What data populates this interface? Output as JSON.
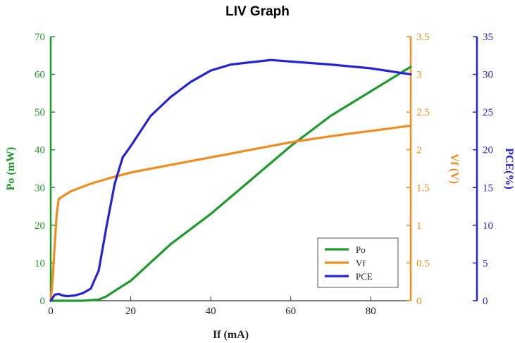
{
  "chart_data": {
    "type": "line",
    "title": "LIV Graph",
    "xlabel": "If (mA)",
    "xlim": [
      0,
      90
    ],
    "xticks": [
      0,
      20,
      40,
      60,
      80
    ],
    "axes": {
      "left": {
        "label": "Po (mW)",
        "lim": [
          0,
          70
        ],
        "ticks": [
          "0",
          "10",
          "20",
          "30",
          "40",
          "50",
          "60",
          "70"
        ],
        "color": "#1e9a2c"
      },
      "right1": {
        "label": "Vf (V)",
        "lim": [
          0,
          3.5
        ],
        "ticks": [
          "0",
          "0.5",
          "1",
          "1.5",
          "2",
          "2.5",
          "3",
          "3.5"
        ],
        "color": "#f08c1e"
      },
      "right2": {
        "label": "PCE(%)",
        "lim": [
          0,
          35
        ],
        "ticks": [
          "0",
          "5",
          "10",
          "15",
          "20",
          "25",
          "30",
          "35"
        ],
        "color": "#2424d4"
      }
    },
    "legend_position": "bottom-right",
    "series": [
      {
        "name": "Po",
        "axis": "left",
        "color": "#1e9a2c",
        "x": [
          0,
          8,
          12,
          14,
          16,
          20,
          30,
          40,
          50,
          60,
          70,
          80,
          90
        ],
        "y": [
          0,
          0,
          0.3,
          1.2,
          2.6,
          5.3,
          15,
          23,
          32,
          41,
          49,
          55.5,
          62
        ]
      },
      {
        "name": "Vf",
        "axis": "right1",
        "color": "#f08c1e",
        "x": [
          0,
          0.5,
          1,
          1.5,
          2,
          5,
          10,
          15,
          20,
          30,
          40,
          50,
          60,
          70,
          80,
          90
        ],
        "y": [
          0,
          0.3,
          0.75,
          1.15,
          1.35,
          1.45,
          1.55,
          1.63,
          1.7,
          1.8,
          1.9,
          2.0,
          2.1,
          2.18,
          2.25,
          2.32
        ]
      },
      {
        "name": "PCE",
        "axis": "right2",
        "color": "#2424d4",
        "x": [
          0,
          1,
          2,
          3,
          4,
          6,
          8,
          10,
          12,
          14,
          16,
          18,
          20,
          25,
          30,
          35,
          40,
          45,
          50,
          55,
          60,
          70,
          80,
          90
        ],
        "y": [
          0,
          0.8,
          0.9,
          0.7,
          0.6,
          0.7,
          1.0,
          1.6,
          4,
          10,
          15.5,
          19,
          20.5,
          24.5,
          27,
          29,
          30.5,
          31.3,
          31.6,
          31.9,
          31.7,
          31.3,
          30.8,
          30
        ]
      }
    ]
  }
}
